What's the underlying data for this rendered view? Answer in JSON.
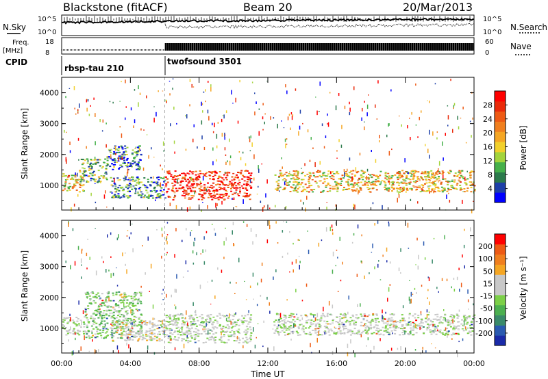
{
  "header": {
    "station": "Blackstone (fitACF)",
    "beam": "Beam 20",
    "date": "20/Mar/2013"
  },
  "top_panels": {
    "nsky_label": "N.Sky",
    "nsearch_label": "N.Search",
    "noise_ticks": [
      "10^5",
      "10^0"
    ],
    "freq_label_line1": "Freq.",
    "freq_label_line2": "[MHz]",
    "freq_ticks": [
      "18",
      "8"
    ],
    "nave_label": "Nave",
    "nave_ticks": [
      "60",
      "0"
    ],
    "cpid_label": "CPID",
    "cpid_segments": [
      {
        "name": "rbsp-tau 210",
        "start": 0,
        "end": 6
      },
      {
        "name": "twofsound 3501",
        "start": 6,
        "end": 24
      }
    ]
  },
  "colors": {
    "power_scale": [
      "#0000ff",
      "#1d3fa8",
      "#2b7a4b",
      "#45b04a",
      "#a3d43c",
      "#f2d02b",
      "#f5a623",
      "#f07f1e",
      "#ee5a14",
      "#ea2a0a",
      "#ff0000"
    ],
    "velocity_scale": [
      "#1a2aa8",
      "#2a5ab0",
      "#3a8a6a",
      "#4cb050",
      "#7cd048",
      "#c8c8c8",
      "#c8c8c8",
      "#f5a623",
      "#f07f1e",
      "#ee5a14",
      "#ff0000"
    ]
  },
  "chart_data": [
    {
      "type": "heatmap",
      "name": "power",
      "ylabel": "Slant Range [km]",
      "xlabel": "Time UT",
      "xlim": [
        0,
        24
      ],
      "ylim": [
        200,
        4500
      ],
      "x_ticks": [
        0,
        4,
        8,
        12,
        16,
        20,
        24
      ],
      "x_tick_labels": [
        "00:00",
        "04:00",
        "08:00",
        "12:00",
        "16:00",
        "20:00",
        "00:00"
      ],
      "y_ticks": [
        1000,
        2000,
        3000,
        4000
      ],
      "y_tick_labels": [
        "1000",
        "2000",
        "3000",
        "4000"
      ],
      "colorbar_label": "Power [dB]",
      "colorbar_range": [
        0,
        32
      ],
      "colorbar_ticks": [
        "4",
        "8",
        "12",
        "16",
        "20",
        "24",
        "28"
      ],
      "regions": [
        {
          "t0": 0.0,
          "t1": 1.3,
          "r0": 800,
          "r1": 1400,
          "level": 0.55
        },
        {
          "t0": 1.0,
          "t1": 2.6,
          "r0": 1100,
          "r1": 1900,
          "level": 0.35
        },
        {
          "t0": 2.6,
          "t1": 4.6,
          "r0": 1500,
          "r1": 2300,
          "level": 0.2
        },
        {
          "t0": 2.8,
          "t1": 6.0,
          "r0": 600,
          "r1": 1300,
          "level": 0.25
        },
        {
          "t0": 6.0,
          "t1": 11.0,
          "r0": 550,
          "r1": 1500,
          "level": 0.9
        },
        {
          "t0": 12.3,
          "t1": 24.0,
          "r0": 800,
          "r1": 1500,
          "level": 0.55
        }
      ]
    },
    {
      "type": "heatmap",
      "name": "velocity",
      "ylabel": "Slant Range [km]",
      "xlabel": "Time UT",
      "xlim": [
        0,
        24
      ],
      "ylim": [
        200,
        4500
      ],
      "x_ticks": [
        0,
        4,
        8,
        12,
        16,
        20,
        24
      ],
      "x_tick_labels": [
        "00:00",
        "04:00",
        "08:00",
        "12:00",
        "16:00",
        "20:00",
        "00:00"
      ],
      "y_ticks": [
        1000,
        2000,
        3000,
        4000
      ],
      "y_tick_labels": [
        "1000",
        "2000",
        "3000",
        "4000"
      ],
      "colorbar_label": "Velocity [m s⁻¹]",
      "colorbar_range": [
        -250,
        250
      ],
      "colorbar_ticks": [
        "200",
        "100",
        "50",
        "15",
        "-15",
        "-50",
        "-100",
        "-200"
      ],
      "regions": [
        {
          "t0": 0.0,
          "t1": 1.3,
          "r0": 800,
          "r1": 1400,
          "level": 0.5
        },
        {
          "t0": 1.3,
          "t1": 4.6,
          "r0": 700,
          "r1": 2200,
          "level": 0.4
        },
        {
          "t0": 2.8,
          "t1": 6.0,
          "r0": 600,
          "r1": 1300,
          "level": 0.55
        },
        {
          "t0": 6.0,
          "t1": 11.0,
          "r0": 550,
          "r1": 1500,
          "level": 0.5
        },
        {
          "t0": 12.3,
          "t1": 24.0,
          "r0": 800,
          "r1": 1500,
          "level": 0.5
        }
      ]
    }
  ]
}
